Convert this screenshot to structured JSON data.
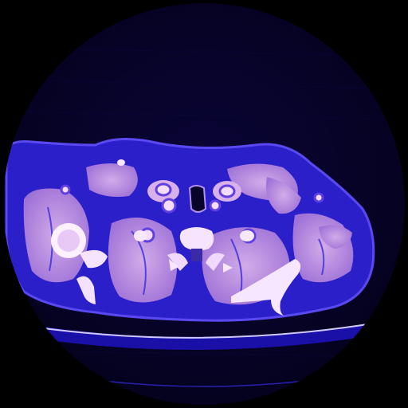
{
  "image": {
    "kind": "axial CT slice, neck / thoracic inlet level, blue-violet color map",
    "colors": {
      "background": "#000000",
      "fov_field": "#07032a",
      "fat": "#2a1fc8",
      "muscle": "#c898e0",
      "bone": "#fff0ff",
      "air": "#07032a",
      "table": "#d0c8ff"
    }
  }
}
